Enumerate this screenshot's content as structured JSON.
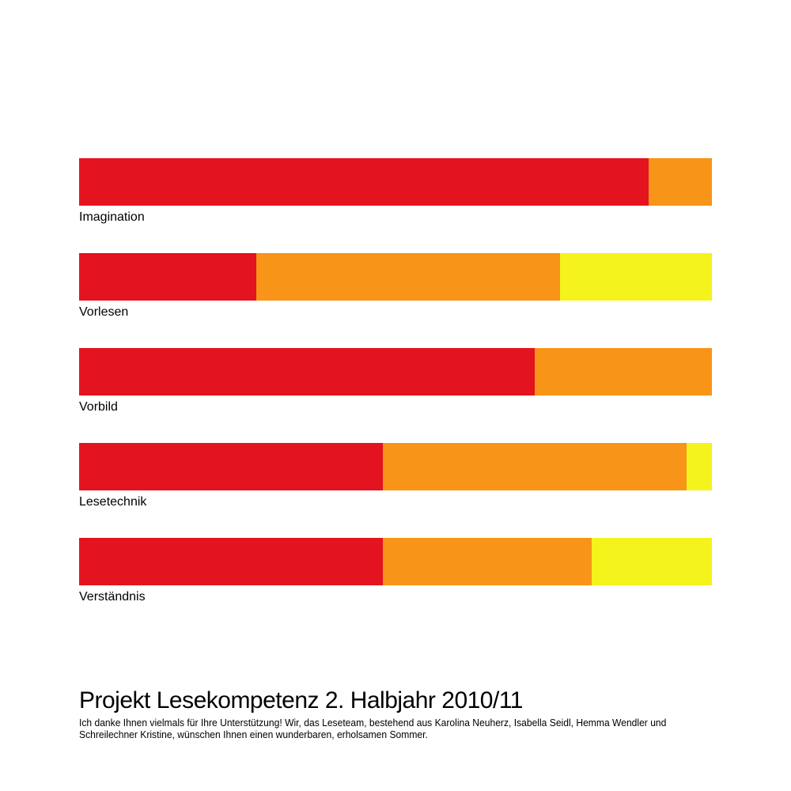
{
  "chart_data": {
    "type": "bar",
    "orientation": "horizontal",
    "stacked": true,
    "normalized": true,
    "xlim": [
      0,
      100
    ],
    "categories": [
      "Imagination",
      "Vorlesen",
      "Vorbild",
      "Lesetechnik",
      "Verständnis"
    ],
    "series": [
      {
        "color": "#e3141f",
        "values": [
          90,
          28,
          72,
          48,
          48
        ]
      },
      {
        "color": "#f89417",
        "values": [
          10,
          48,
          28,
          48,
          33
        ]
      },
      {
        "color": "#f5f31c",
        "values": [
          0,
          24,
          0,
          4,
          19
        ]
      }
    ],
    "grid": false,
    "legend": "none"
  },
  "footer": {
    "title": "Projekt Lesekompetenz 2. Halbjahr 2010/11",
    "text": "Ich danke Ihnen vielmals für Ihre Unterstützung! Wir, das Leseteam, bestehend aus Karolina Neuherz, Isabella Seidl, Hemma Wendler und Schreilechner Kristine, wünschen Ihnen einen wunderbaren, erholsamen Sommer."
  }
}
